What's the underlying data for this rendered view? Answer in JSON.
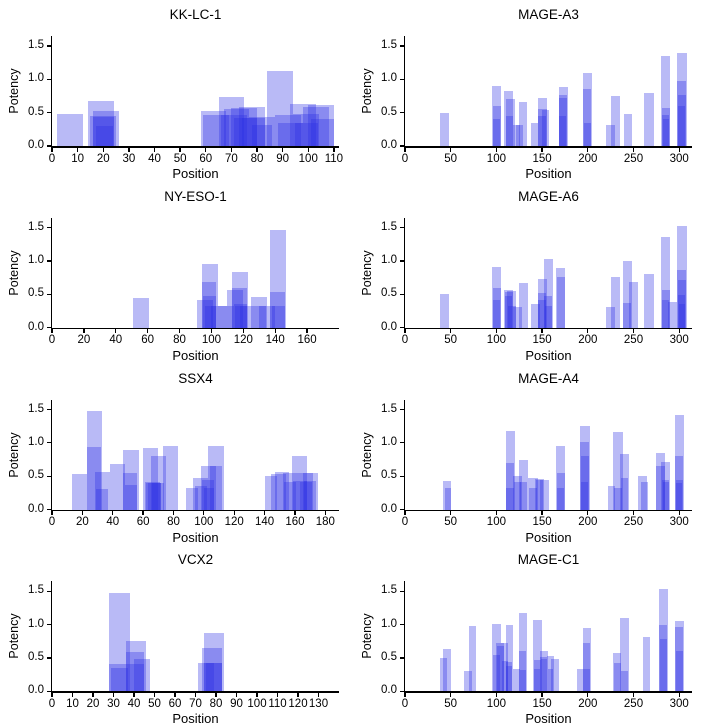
{
  "style": {
    "background": "#ffffff",
    "axis_color": "#000000",
    "text_color": "#000000",
    "bar_color_hex": "#2b2de4",
    "bar_fill": "rgba(43,45,228,0.33)",
    "yticks": [
      0,
      0.5,
      1.0,
      1.5
    ],
    "ytick_labels": [
      "0.0",
      "0.5",
      "1.0",
      "1.5"
    ]
  },
  "chart_data": [
    {
      "type": "bar",
      "title": "KK-LC-1",
      "xlabel": "Position",
      "ylabel": "Potency",
      "xlim": [
        0,
        112
      ],
      "ylim": [
        0,
        1.65
      ],
      "xticks": [
        0,
        10,
        20,
        30,
        40,
        50,
        60,
        70,
        80,
        90,
        100,
        110
      ],
      "bars_format": "[x_start, x_end, potency]",
      "bars": [
        [
          2,
          12,
          0.48
        ],
        [
          14,
          24,
          0.67
        ],
        [
          15,
          25,
          0.45
        ],
        [
          16,
          26,
          0.53
        ],
        [
          16,
          24,
          0.44
        ],
        [
          17,
          24,
          0.3
        ],
        [
          58,
          68,
          0.53
        ],
        [
          59,
          69,
          0.47
        ],
        [
          65,
          75,
          0.74
        ],
        [
          66,
          76,
          0.47
        ],
        [
          67,
          77,
          0.55
        ],
        [
          70,
          80,
          0.57
        ],
        [
          71,
          80,
          0.42
        ],
        [
          73,
          83,
          0.58
        ],
        [
          74,
          83,
          0.42
        ],
        [
          77,
          87,
          0.43
        ],
        [
          78,
          86,
          0.31
        ],
        [
          84,
          94,
          1.13
        ],
        [
          87,
          97,
          0.47
        ],
        [
          88,
          98,
          0.35
        ],
        [
          93,
          103,
          0.63
        ],
        [
          94,
          104,
          0.48
        ],
        [
          95,
          104,
          0.35
        ],
        [
          98,
          108,
          0.58
        ],
        [
          100,
          110,
          0.61
        ],
        [
          101,
          110,
          0.41
        ]
      ]
    },
    {
      "type": "bar",
      "title": "MAGE-A3",
      "xlabel": "Position",
      "ylabel": "Potency",
      "xlim": [
        0,
        314
      ],
      "ylim": [
        0,
        1.65
      ],
      "xticks": [
        0,
        50,
        100,
        150,
        200,
        250,
        300
      ],
      "bars_format": "[x_start, x_end, potency]",
      "bars": [
        [
          38,
          48,
          0.5
        ],
        [
          95,
          105,
          0.9
        ],
        [
          96,
          105,
          0.6
        ],
        [
          96,
          104,
          0.41
        ],
        [
          108,
          118,
          0.83
        ],
        [
          110,
          120,
          0.7
        ],
        [
          110,
          118,
          0.45
        ],
        [
          118,
          126,
          0.31
        ],
        [
          121,
          129,
          0.31
        ],
        [
          125,
          133,
          0.66
        ],
        [
          138,
          146,
          0.35
        ],
        [
          145,
          155,
          0.72
        ],
        [
          146,
          155,
          0.55
        ],
        [
          146,
          154,
          0.45
        ],
        [
          150,
          158,
          0.54
        ],
        [
          168,
          178,
          0.88
        ],
        [
          168,
          177,
          0.77
        ],
        [
          169,
          177,
          0.72
        ],
        [
          169,
          176,
          0.45
        ],
        [
          195,
          205,
          1.1
        ],
        [
          195,
          204,
          0.85
        ],
        [
          196,
          204,
          0.35
        ],
        [
          220,
          230,
          0.31
        ],
        [
          225,
          235,
          0.75
        ],
        [
          240,
          248,
          0.48
        ],
        [
          262,
          272,
          0.8
        ],
        [
          280,
          290,
          1.35
        ],
        [
          281,
          290,
          0.57
        ],
        [
          281,
          289,
          0.47
        ],
        [
          282,
          289,
          0.4
        ],
        [
          298,
          308,
          1.39
        ],
        [
          298,
          307,
          0.97
        ],
        [
          299,
          307,
          0.77
        ],
        [
          299,
          306,
          0.6
        ]
      ]
    },
    {
      "type": "bar",
      "title": "NY-ESO-1",
      "xlabel": "Position",
      "ylabel": "Potency",
      "xlim": [
        0,
        180
      ],
      "ylim": [
        0,
        1.65
      ],
      "xticks": [
        0,
        20,
        40,
        60,
        80,
        100,
        120,
        140,
        160
      ],
      "bars_format": "[x_start, x_end, potency]",
      "bars": [
        [
          51,
          61,
          0.44
        ],
        [
          91,
          101,
          0.42
        ],
        [
          94,
          104,
          0.96
        ],
        [
          94,
          103,
          0.69
        ],
        [
          95,
          103,
          0.47
        ],
        [
          96,
          103,
          0.33
        ],
        [
          100,
          110,
          0.33
        ],
        [
          104,
          114,
          0.33
        ],
        [
          110,
          120,
          0.56
        ],
        [
          113,
          123,
          0.83
        ],
        [
          113,
          122,
          0.6
        ],
        [
          114,
          122,
          0.35
        ],
        [
          115,
          122,
          0.33
        ],
        [
          118,
          126,
          0.33
        ],
        [
          125,
          135,
          0.46
        ],
        [
          126,
          134,
          0.33
        ],
        [
          130,
          140,
          0.33
        ],
        [
          137,
          147,
          1.47
        ],
        [
          137,
          146,
          0.53
        ],
        [
          138,
          146,
          0.32
        ]
      ]
    },
    {
      "type": "bar",
      "title": "MAGE-A6",
      "xlabel": "Position",
      "ylabel": "Potency",
      "xlim": [
        0,
        314
      ],
      "ylim": [
        0,
        1.65
      ],
      "xticks": [
        0,
        50,
        100,
        150,
        200,
        250,
        300
      ],
      "bars_format": "[x_start, x_end, potency]",
      "bars": [
        [
          38,
          48,
          0.5
        ],
        [
          95,
          105,
          0.91
        ],
        [
          96,
          105,
          0.6
        ],
        [
          96,
          104,
          0.41
        ],
        [
          108,
          118,
          0.56
        ],
        [
          109,
          118,
          0.54
        ],
        [
          109,
          117,
          0.47
        ],
        [
          112,
          122,
          0.55
        ],
        [
          113,
          121,
          0.33
        ],
        [
          118,
          128,
          0.31
        ],
        [
          125,
          135,
          0.67
        ],
        [
          138,
          148,
          0.35
        ],
        [
          145,
          155,
          0.73
        ],
        [
          145,
          154,
          0.52
        ],
        [
          146,
          154,
          0.42
        ],
        [
          152,
          162,
          1.03
        ],
        [
          152,
          161,
          0.48
        ],
        [
          153,
          161,
          0.33
        ],
        [
          165,
          175,
          0.89
        ],
        [
          166,
          175,
          0.76
        ],
        [
          220,
          230,
          0.31
        ],
        [
          225,
          235,
          0.76
        ],
        [
          238,
          248,
          1.0
        ],
        [
          239,
          247,
          0.37
        ],
        [
          245,
          255,
          0.69
        ],
        [
          262,
          272,
          0.81
        ],
        [
          280,
          290,
          1.36
        ],
        [
          281,
          290,
          0.57
        ],
        [
          281,
          289,
          0.42
        ],
        [
          288,
          298,
          0.39
        ],
        [
          298,
          308,
          1.52
        ],
        [
          298,
          307,
          0.86
        ],
        [
          299,
          307,
          0.71
        ],
        [
          299,
          306,
          0.49
        ],
        [
          300,
          306,
          0.36
        ]
      ]
    },
    {
      "type": "bar",
      "title": "SSX4",
      "xlabel": "Position",
      "ylabel": "Potency",
      "xlim": [
        0,
        189
      ],
      "ylim": [
        0,
        1.65
      ],
      "xticks": [
        0,
        20,
        40,
        60,
        80,
        100,
        120,
        140,
        160,
        180
      ],
      "bars_format": "[x_start, x_end, potency]",
      "bars": [
        [
          13,
          23,
          0.54
        ],
        [
          23,
          33,
          1.48
        ],
        [
          23,
          32,
          0.94
        ],
        [
          28,
          38,
          0.57
        ],
        [
          29,
          37,
          0.31
        ],
        [
          38,
          48,
          0.68
        ],
        [
          47,
          57,
          0.9
        ],
        [
          47,
          56,
          0.55
        ],
        [
          48,
          56,
          0.37
        ],
        [
          60,
          70,
          0.92
        ],
        [
          61,
          71,
          0.41
        ],
        [
          62,
          72,
          0.4
        ],
        [
          63,
          72,
          0.4
        ],
        [
          65,
          75,
          0.81
        ],
        [
          66,
          74,
          0.4
        ],
        [
          73,
          83,
          0.95
        ],
        [
          88,
          96,
          0.33
        ],
        [
          93,
          103,
          0.47
        ],
        [
          94,
          102,
          0.36
        ],
        [
          98,
          108,
          0.66
        ],
        [
          99,
          107,
          0.45
        ],
        [
          100,
          107,
          0.33
        ],
        [
          103,
          113,
          0.96
        ],
        [
          104,
          112,
          0.66
        ],
        [
          140,
          148,
          0.51
        ],
        [
          144,
          154,
          0.53
        ],
        [
          147,
          156,
          0.56
        ],
        [
          152,
          162,
          0.55
        ],
        [
          153,
          161,
          0.42
        ],
        [
          158,
          168,
          0.81
        ],
        [
          159,
          168,
          0.43
        ],
        [
          162,
          172,
          0.55
        ],
        [
          163,
          171,
          0.42
        ],
        [
          165,
          175,
          0.55
        ],
        [
          166,
          174,
          0.43
        ]
      ]
    },
    {
      "type": "bar",
      "title": "MAGE-A4",
      "xlabel": "Position",
      "ylabel": "Potency",
      "xlim": [
        0,
        314
      ],
      "ylim": [
        0,
        1.65
      ],
      "xticks": [
        0,
        50,
        100,
        150,
        200,
        250,
        300
      ],
      "bars_format": "[x_start, x_end, potency]",
      "bars": [
        [
          42,
          50,
          0.43
        ],
        [
          44,
          50,
          0.33
        ],
        [
          110,
          120,
          1.18
        ],
        [
          110,
          119,
          0.7
        ],
        [
          111,
          119,
          0.33
        ],
        [
          118,
          128,
          0.51
        ],
        [
          119,
          127,
          0.41
        ],
        [
          125,
          135,
          0.75
        ],
        [
          126,
          134,
          0.42
        ],
        [
          135,
          145,
          0.48
        ],
        [
          136,
          144,
          0.33
        ],
        [
          142,
          152,
          0.46
        ],
        [
          143,
          151,
          0.44
        ],
        [
          148,
          158,
          0.44
        ],
        [
          165,
          175,
          0.95
        ],
        [
          166,
          175,
          0.55
        ],
        [
          166,
          174,
          0.32
        ],
        [
          192,
          202,
          1.25
        ],
        [
          192,
          201,
          1.02
        ],
        [
          193,
          201,
          0.8
        ],
        [
          193,
          200,
          0.42
        ],
        [
          222,
          230,
          0.36
        ],
        [
          228,
          238,
          1.16
        ],
        [
          229,
          237,
          0.33
        ],
        [
          235,
          245,
          0.83
        ],
        [
          236,
          244,
          0.48
        ],
        [
          255,
          265,
          0.5
        ],
        [
          258,
          266,
          0.42
        ],
        [
          275,
          285,
          0.85
        ],
        [
          275,
          284,
          0.66
        ],
        [
          280,
          290,
          0.72
        ],
        [
          281,
          289,
          0.45
        ],
        [
          282,
          289,
          0.42
        ],
        [
          295,
          305,
          1.42
        ],
        [
          295,
          304,
          0.81
        ],
        [
          296,
          304,
          0.45
        ],
        [
          296,
          303,
          0.4
        ]
      ]
    },
    {
      "type": "bar",
      "title": "VCX2",
      "xlabel": "Position",
      "ylabel": "Potency",
      "xlim": [
        0,
        140
      ],
      "ylim": [
        0,
        1.65
      ],
      "xticks": [
        0,
        10,
        20,
        30,
        40,
        50,
        60,
        70,
        80,
        90,
        100,
        110,
        120,
        130
      ],
      "bars_format": "[x_start, x_end, potency]",
      "bars": [
        [
          28,
          38,
          1.48
        ],
        [
          28,
          37,
          0.41
        ],
        [
          29,
          37,
          0.35
        ],
        [
          36,
          46,
          0.75
        ],
        [
          36,
          45,
          0.59
        ],
        [
          37,
          45,
          0.41
        ],
        [
          40,
          48,
          0.49
        ],
        [
          71,
          79,
          0.42
        ],
        [
          73,
          83,
          0.65
        ],
        [
          74,
          84,
          0.88
        ],
        [
          74,
          83,
          0.42
        ],
        [
          75,
          83,
          0.42
        ]
      ]
    },
    {
      "type": "bar",
      "title": "MAGE-C1",
      "xlabel": "Position",
      "ylabel": "Potency",
      "xlim": [
        0,
        314
      ],
      "ylim": [
        0,
        1.65
      ],
      "xticks": [
        0,
        50,
        100,
        150,
        200,
        250,
        300
      ],
      "bars_format": "[x_start, x_end, potency]",
      "bars": [
        [
          38,
          46,
          0.5
        ],
        [
          42,
          50,
          0.63
        ],
        [
          65,
          73,
          0.31
        ],
        [
          70,
          78,
          0.98
        ],
        [
          95,
          105,
          1.01
        ],
        [
          96,
          104,
          0.55
        ],
        [
          100,
          108,
          0.72
        ],
        [
          101,
          108,
          0.68
        ],
        [
          105,
          113,
          0.72
        ],
        [
          106,
          113,
          0.45
        ],
        [
          110,
          118,
          0.99
        ],
        [
          110,
          117,
          0.44
        ],
        [
          111,
          117,
          0.38
        ],
        [
          118,
          126,
          0.33
        ],
        [
          125,
          133,
          1.18
        ],
        [
          125,
          132,
          0.61
        ],
        [
          126,
          132,
          0.32
        ],
        [
          140,
          150,
          1.07
        ],
        [
          141,
          149,
          0.47
        ],
        [
          141,
          148,
          0.33
        ],
        [
          148,
          156,
          0.61
        ],
        [
          148,
          155,
          0.52
        ],
        [
          149,
          155,
          0.48
        ],
        [
          155,
          163,
          0.53
        ],
        [
          156,
          162,
          0.33
        ],
        [
          160,
          168,
          0.48
        ],
        [
          188,
          196,
          0.33
        ],
        [
          195,
          203,
          0.95
        ],
        [
          195,
          202,
          0.72
        ],
        [
          196,
          202,
          0.33
        ],
        [
          228,
          236,
          0.57
        ],
        [
          229,
          236,
          0.42
        ],
        [
          235,
          245,
          1.1
        ],
        [
          236,
          244,
          0.31
        ],
        [
          260,
          268,
          0.81
        ],
        [
          278,
          288,
          1.53
        ],
        [
          278,
          287,
          1.0
        ],
        [
          279,
          287,
          0.78
        ],
        [
          295,
          305,
          1.06
        ],
        [
          295,
          304,
          0.97
        ],
        [
          296,
          304,
          0.6
        ]
      ]
    }
  ]
}
